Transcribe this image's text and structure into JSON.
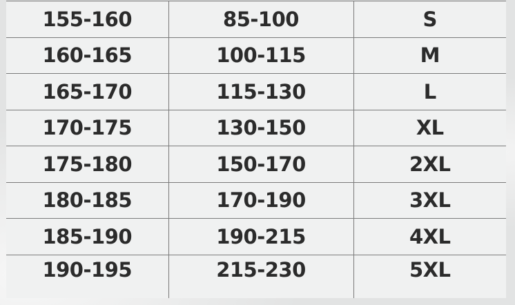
{
  "size_table": {
    "rows": [
      [
        "155-160",
        "85-100",
        "S"
      ],
      [
        "160-165",
        "100-115",
        "M"
      ],
      [
        "165-170",
        "115-130",
        "L"
      ],
      [
        "170-175",
        "130-150",
        "XL"
      ],
      [
        "175-180",
        "150-170",
        "2XL"
      ],
      [
        "180-185",
        "170-190",
        "3XL"
      ],
      [
        "185-190",
        "190-215",
        "4XL"
      ],
      [
        "190-195",
        "215-230",
        "5XL"
      ]
    ]
  }
}
